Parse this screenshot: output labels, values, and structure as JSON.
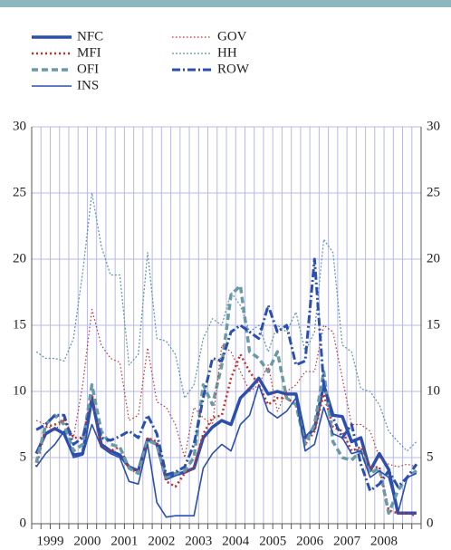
{
  "chart_data": {
    "type": "line",
    "categories": [
      "1999",
      null,
      null,
      null,
      "2000",
      null,
      null,
      null,
      "2001",
      null,
      null,
      null,
      "2002",
      null,
      null,
      null,
      "2003",
      null,
      null,
      null,
      "2004",
      null,
      null,
      null,
      "2005",
      null,
      null,
      null,
      "2006",
      null,
      null,
      null,
      "2007",
      null,
      null,
      null,
      "2008",
      null,
      null,
      null,
      null,
      null
    ],
    "ylim": [
      0,
      30
    ],
    "yticks": [
      0,
      5,
      10,
      15,
      20,
      25,
      30
    ],
    "grid": true,
    "series": [
      {
        "name": "NFC",
        "color": "#2b4fae",
        "width": 3.5,
        "dash": "none",
        "values": [
          5.3,
          6.8,
          7.2,
          6.8,
          5.2,
          5.3,
          9.5,
          6.0,
          5.5,
          5.2,
          4.3,
          4.0,
          6.4,
          6.0,
          3.4,
          3.7,
          3.9,
          4.2,
          6.5,
          7.3,
          7.8,
          7.5,
          9.5,
          10.2,
          11.0,
          9.8,
          10.0,
          9.8,
          9.8,
          6.5,
          7.2,
          10.5,
          8.2,
          8.1,
          6.2,
          6.5,
          4.0,
          5.3,
          4.1,
          0.8,
          0.8,
          0.8
        ]
      },
      {
        "name": "MFI",
        "color": "#c0302a",
        "width": 2.5,
        "dash": "2 3",
        "values": [
          4.3,
          7.3,
          7.5,
          7.8,
          6.5,
          6.5,
          9.8,
          5.8,
          5.5,
          5.8,
          4.2,
          3.8,
          6.5,
          6.2,
          3.2,
          2.8,
          3.8,
          4.3,
          6.8,
          8.0,
          8.2,
          11.0,
          12.8,
          11.5,
          10.5,
          9.0,
          9.5,
          9.5,
          9.0,
          6.0,
          7.0,
          9.8,
          7.3,
          7.0,
          5.5,
          5.8,
          4.2,
          4.3,
          1.0,
          0.8,
          0.8,
          0.6
        ]
      },
      {
        "name": "OFI",
        "color": "#6a9aa6",
        "width": 3.5,
        "dash": "7 4",
        "values": [
          4.6,
          7.5,
          8.2,
          7.5,
          5.5,
          6.0,
          10.5,
          7.0,
          6.0,
          5.8,
          4.2,
          3.8,
          6.3,
          6.0,
          3.5,
          3.8,
          4.0,
          5.0,
          10.5,
          9.0,
          12.0,
          17.3,
          18.0,
          13.0,
          12.5,
          11.5,
          13.0,
          9.5,
          9.0,
          6.0,
          7.5,
          11.5,
          6.2,
          5.0,
          4.8,
          5.5,
          3.8,
          4.2,
          0.8,
          2.5,
          3.5,
          4.0
        ]
      },
      {
        "name": "INS",
        "color": "#2b4fae",
        "width": 1.6,
        "dash": "none",
        "values": [
          4.3,
          5.3,
          6.0,
          7.0,
          5.0,
          5.2,
          7.5,
          5.8,
          5.3,
          5.0,
          3.2,
          3.0,
          6.0,
          1.6,
          0.5,
          0.6,
          0.6,
          0.6,
          4.2,
          5.3,
          6.0,
          5.5,
          7.5,
          8.2,
          10.5,
          8.5,
          8.0,
          8.5,
          9.5,
          5.5,
          6.0,
          8.8,
          6.8,
          6.5,
          5.3,
          5.5,
          3.5,
          4.0,
          3.5,
          0.8,
          3.5,
          3.8
        ]
      },
      {
        "name": "GOV",
        "color": "#c0302a",
        "width": 1.2,
        "dash": "1.5 2.5",
        "values": [
          7.8,
          7.5,
          7.0,
          8.0,
          6.5,
          10.5,
          16.2,
          13.5,
          12.5,
          12.2,
          7.8,
          8.2,
          13.3,
          9.2,
          8.8,
          7.5,
          5.0,
          8.8,
          8.0,
          7.5,
          13.5,
          13.0,
          11.5,
          10.0,
          10.5,
          12.0,
          8.5,
          10.0,
          10.5,
          11.5,
          11.5,
          15.0,
          14.5,
          11.0,
          7.5,
          7.5,
          7.0,
          5.0,
          4.5,
          4.3,
          4.5,
          4.3
        ]
      },
      {
        "name": "HH",
        "color": "#5f93a3",
        "width": 1.2,
        "dash": "2 2",
        "values": [
          13.0,
          12.5,
          12.5,
          12.3,
          14.0,
          19.0,
          25.0,
          21.0,
          18.8,
          18.8,
          12.0,
          12.8,
          20.5,
          14.0,
          13.8,
          12.8,
          9.5,
          10.5,
          14.0,
          15.5,
          15.0,
          17.5,
          16.5,
          14.5,
          15.0,
          13.0,
          15.0,
          14.5,
          16.0,
          13.0,
          14.5,
          21.5,
          20.5,
          13.5,
          13.0,
          10.2,
          10.0,
          9.0,
          7.0,
          6.2,
          5.5,
          6.2
        ]
      },
      {
        "name": "ROW",
        "color": "#2b4fae",
        "width": 3,
        "dash": "9 3 2 3",
        "values": [
          7.1,
          7.5,
          8.2,
          8.2,
          6.0,
          6.5,
          9.2,
          6.5,
          6.3,
          6.6,
          7.0,
          6.5,
          8.2,
          6.8,
          3.7,
          3.9,
          4.3,
          6.0,
          9.5,
          12.5,
          12.3,
          14.5,
          15.0,
          14.5,
          14.0,
          16.5,
          14.5,
          15.0,
          12.0,
          12.3,
          20.0,
          10.5,
          8.0,
          6.5,
          7.5,
          4.5,
          2.5,
          3.0,
          4.0,
          2.8,
          3.5,
          4.5
        ]
      }
    ]
  }
}
